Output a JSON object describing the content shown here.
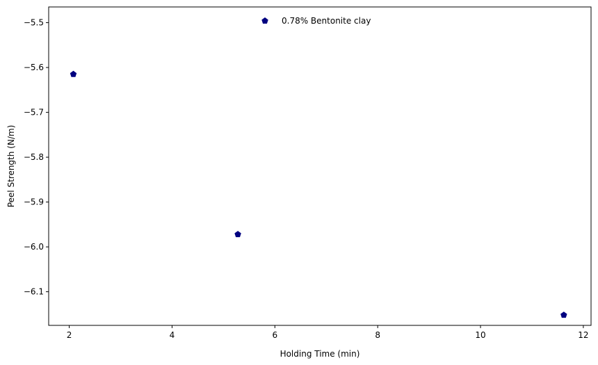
{
  "chart_data": {
    "type": "scatter",
    "title": "",
    "xlabel": "Holding Time (min)",
    "ylabel": "Peel Strength (N/m)",
    "xlim": [
      1.6,
      12.15
    ],
    "ylim": [
      -6.175,
      -5.465
    ],
    "x_ticks": [
      2,
      4,
      6,
      8,
      10,
      12
    ],
    "y_ticks": [
      -5.5,
      -5.6,
      -5.7,
      -5.8,
      -5.9,
      -6.0,
      -6.1
    ],
    "x_tick_labels": [
      "2",
      "4",
      "6",
      "8",
      "10",
      "12"
    ],
    "y_tick_labels": [
      "−5.5",
      "−5.6",
      "−5.7",
      "−5.8",
      "−5.9",
      "−6.0",
      "−6.1"
    ],
    "grid": false,
    "legend_position": "top-center",
    "series": [
      {
        "name": "0.78% Bentonite clay",
        "color": "#000080",
        "marker": "pentagon",
        "points": [
          {
            "x": 2.08,
            "y": -5.615
          },
          {
            "x": 5.28,
            "y": -5.972
          },
          {
            "x": 11.62,
            "y": -6.152
          }
        ]
      }
    ]
  }
}
